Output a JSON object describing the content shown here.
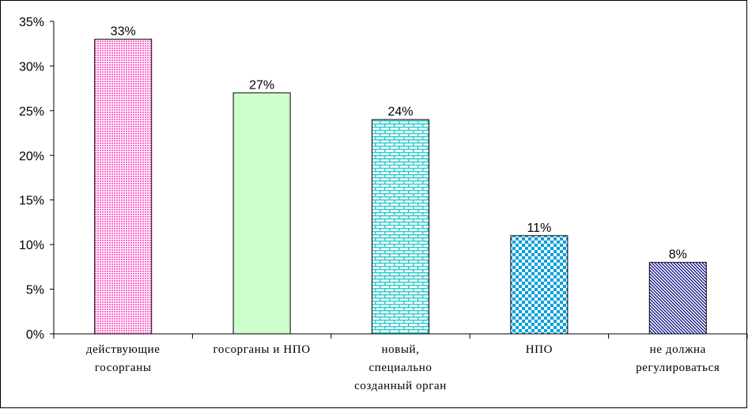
{
  "chart_data": {
    "type": "bar",
    "categories": [
      [
        "действующие",
        "госорганы"
      ],
      [
        "госорганы и НПО"
      ],
      [
        "новый,",
        "специально",
        "созданный орган"
      ],
      [
        "НПО"
      ],
      [
        "не должна",
        "регулироваться"
      ]
    ],
    "values": [
      33,
      27,
      24,
      11,
      8
    ],
    "data_labels": [
      "33%",
      "27%",
      "24%",
      "11%",
      "8%"
    ],
    "ylim": [
      0,
      35
    ],
    "yticks": [
      0,
      5,
      10,
      15,
      20,
      25,
      30,
      35
    ],
    "ytick_labels": [
      "0%",
      "5%",
      "10%",
      "15%",
      "20%",
      "25%",
      "30%",
      "35%"
    ],
    "grid": false,
    "legend": "none",
    "bar_colors": [
      "#ff66cc",
      "#ccffcc",
      "#33cccc",
      "#00a0e0",
      "#000080"
    ],
    "bar_patterns": [
      "dots",
      "solid",
      "bricks",
      "checker",
      "diagonal"
    ]
  }
}
